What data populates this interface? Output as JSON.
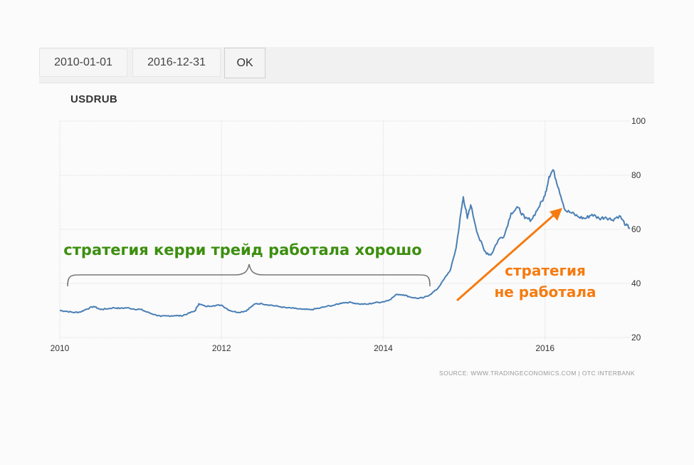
{
  "date_range": {
    "start": "2010-01-01",
    "end": "2016-12-31",
    "ok_label": "OK"
  },
  "colors": {
    "line": "#4a7fb5",
    "grid": "#dddddd",
    "annotation_good": "#3c8f0f",
    "annotation_bad": "#f57b10",
    "brace": "#777777"
  },
  "chart_data": {
    "type": "line",
    "title": "USDRUB",
    "xlabel": "",
    "ylabel": "",
    "xlim": [
      2010.0,
      2017.05
    ],
    "ylim": [
      20,
      100
    ],
    "x_ticks": [
      "2010",
      "2012",
      "2014",
      "2016"
    ],
    "x_tick_values": [
      2010,
      2012,
      2014,
      2016
    ],
    "y_ticks": [
      "20",
      "40",
      "60",
      "80",
      "100"
    ],
    "y_tick_values": [
      20,
      40,
      60,
      80,
      100
    ],
    "y_axis_side": "right",
    "grid": true,
    "source": "SOURCE: WWW.TRADINGECONOMICS.COM | OTC INTERBANK",
    "series": [
      {
        "x": [
          2010.0,
          2010.08,
          2010.17,
          2010.25,
          2010.33,
          2010.42,
          2010.5,
          2010.58,
          2010.67,
          2010.75,
          2010.83,
          2010.92,
          2011.0,
          2011.08,
          2011.17,
          2011.25,
          2011.33,
          2011.42,
          2011.5,
          2011.58,
          2011.67,
          2011.72,
          2011.8,
          2011.9,
          2012.0,
          2012.1,
          2012.2,
          2012.3,
          2012.35,
          2012.42,
          2012.5,
          2012.6,
          2012.7,
          2012.8,
          2012.9,
          2013.0,
          2013.1,
          2013.2,
          2013.3,
          2013.4,
          2013.5,
          2013.6,
          2013.7,
          2013.8,
          2013.9,
          2014.0,
          2014.08,
          2014.17,
          2014.25,
          2014.33,
          2014.42,
          2014.5,
          2014.58,
          2014.67,
          2014.75,
          2014.83,
          2014.9,
          2014.96,
          2014.99,
          2015.04,
          2015.08,
          2015.17,
          2015.25,
          2015.33,
          2015.42,
          2015.5,
          2015.58,
          2015.67,
          2015.75,
          2015.83,
          2015.92,
          2016.0,
          2016.05,
          2016.1,
          2016.17,
          2016.25,
          2016.33,
          2016.42,
          2016.5,
          2016.58,
          2016.67,
          2016.75,
          2016.83,
          2016.92,
          2017.0,
          2017.05
        ],
        "y": [
          30.0,
          29.7,
          29.3,
          29.4,
          30.5,
          31.5,
          30.4,
          30.6,
          31.0,
          30.8,
          31.0,
          30.5,
          30.4,
          29.4,
          28.5,
          27.8,
          28.0,
          28.1,
          28.0,
          28.8,
          29.8,
          32.5,
          31.5,
          31.8,
          32.0,
          30.0,
          29.3,
          29.8,
          31.0,
          32.5,
          32.5,
          32.0,
          31.5,
          31.0,
          30.8,
          30.4,
          30.3,
          30.8,
          31.5,
          32.0,
          32.9,
          33.0,
          32.4,
          32.3,
          32.9,
          33.2,
          34.0,
          36.0,
          35.8,
          35.0,
          34.5,
          34.7,
          35.9,
          38.0,
          41.5,
          45.0,
          53.0,
          66.0,
          72.0,
          64.0,
          69.0,
          58.0,
          52.0,
          50.5,
          56.0,
          58.0,
          66.0,
          68.0,
          64.0,
          63.5,
          68.0,
          72.5,
          79.5,
          82.0,
          75.0,
          67.0,
          66.0,
          64.5,
          64.0,
          65.5,
          64.0,
          64.5,
          63.5,
          65.0,
          61.5,
          60.5
        ]
      }
    ]
  },
  "annotations": {
    "good_strategy": "стратегия керри трейд работала хорошо",
    "bad_strategy_line1": "стратегия",
    "bad_strategy_line2": "не работала"
  }
}
